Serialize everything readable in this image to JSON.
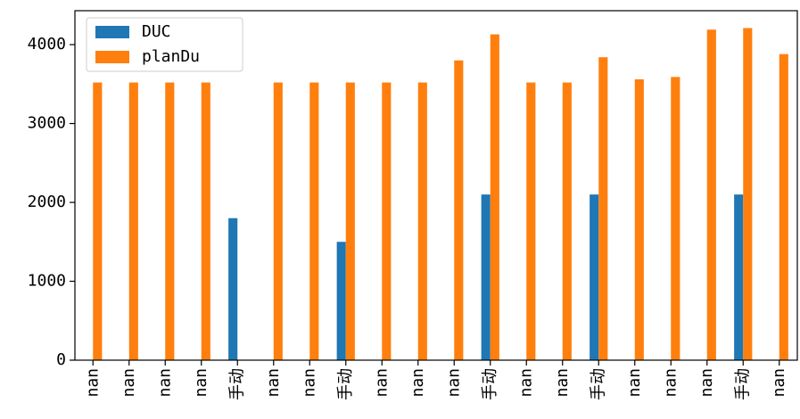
{
  "chart_data": {
    "type": "bar",
    "categories": [
      "nan",
      "nan",
      "nan",
      "nan",
      "手动",
      "nan",
      "nan",
      "手动",
      "nan",
      "nan",
      "nan",
      "手动",
      "nan",
      "nan",
      "手动",
      "nan",
      "nan",
      "nan",
      "手动",
      "nan"
    ],
    "series": [
      {
        "name": "DUC",
        "color": "#1f77b4",
        "values": [
          null,
          null,
          null,
          null,
          1800,
          null,
          null,
          1500,
          null,
          null,
          null,
          2100,
          null,
          null,
          2100,
          null,
          null,
          null,
          2100,
          null
        ]
      },
      {
        "name": "planDu",
        "color": "#ff7f0e",
        "values": [
          3520,
          3520,
          3520,
          3520,
          null,
          3520,
          3520,
          3520,
          3520,
          3520,
          3800,
          4130,
          3520,
          3520,
          3840,
          3560,
          3590,
          4190,
          4210,
          3880
        ]
      }
    ],
    "ylim": [
      0,
      4430
    ],
    "yticks": [
      0,
      1000,
      2000,
      3000,
      4000
    ],
    "legend": "upper left"
  }
}
